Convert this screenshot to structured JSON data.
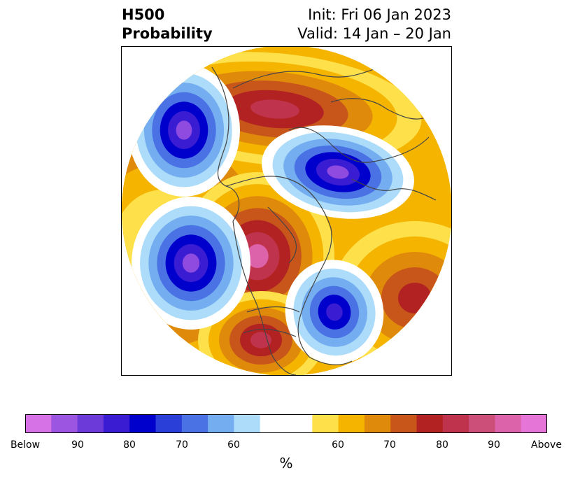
{
  "title": {
    "left_line1": "H500",
    "left_line2": "Probability",
    "right_line1": "Init: Fri 06 Jan 2023",
    "right_line2": "Valid: 14 Jan – 20 Jan"
  },
  "colorbar": {
    "unit": "%",
    "tick_labels": [
      "Below",
      "90",
      "80",
      "70",
      "60",
      "60",
      "70",
      "80",
      "90",
      "Above"
    ],
    "colors": [
      "#d672e6",
      "#9b55e0",
      "#6c3ad8",
      "#3a1dd2",
      "#0000cc",
      "#2a3ed8",
      "#4a72e4",
      "#74aef0",
      "#acdcfa",
      "#ffffff",
      "#ffffff",
      "#fee14a",
      "#f4b400",
      "#e08a0c",
      "#c8561a",
      "#b22222",
      "#c0334c",
      "#cc4f7a",
      "#dc62aa",
      "#e675d8"
    ]
  },
  "map": {
    "projection": "polar-stereographic-north",
    "palette": {
      "below_far": "#8f4ae0",
      "below_strong": "#3a1dd2",
      "below_mid": "#0000cc",
      "below_weak": "#4a72e4",
      "below_light": "#74aef0",
      "below_faint": "#acdcfa",
      "above_faint": "#fee14a",
      "above_light": "#f4b400",
      "above_weak": "#e08a0c",
      "above_mid": "#c8561a",
      "above_strong": "#b22222",
      "above_high": "#c0334c",
      "above_far": "#dc62aa",
      "neutral": "#ffffff",
      "coast": "#444444"
    }
  }
}
